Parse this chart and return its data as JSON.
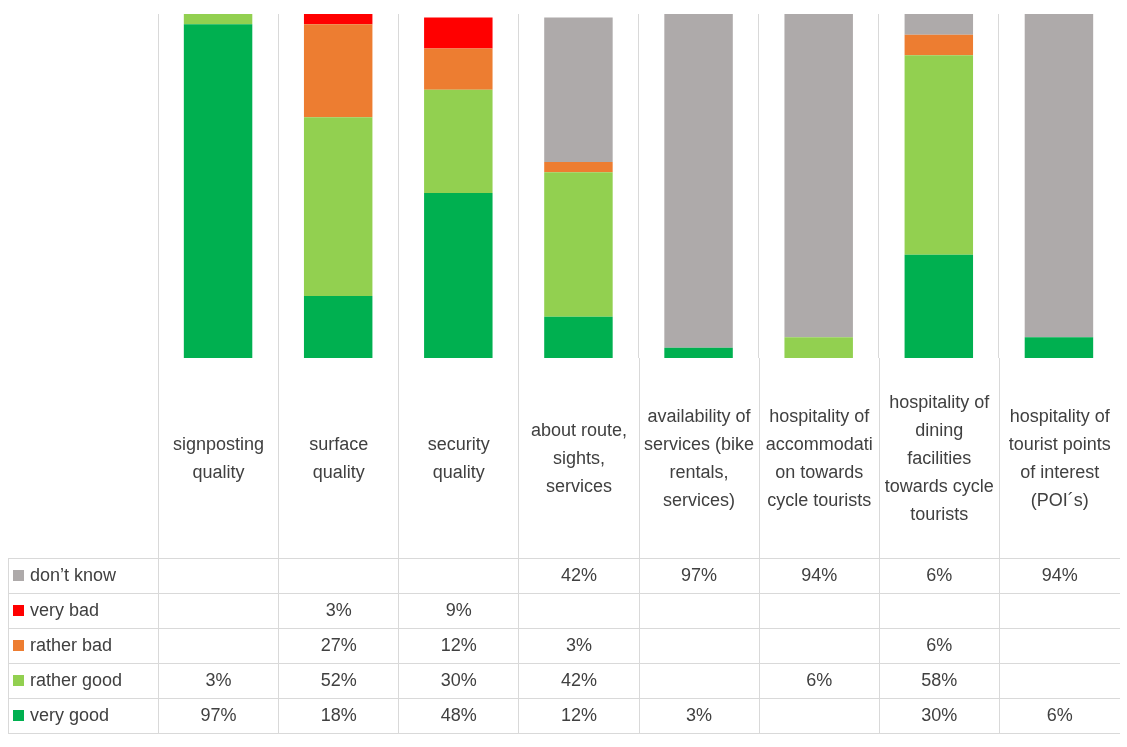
{
  "chart_data": {
    "type": "bar",
    "stacked": true,
    "categories": [
      "signposting quality",
      "surface quality",
      "security quality",
      "about route, sights, services",
      "availability of services (bike rentals, services)",
      "hospitality of accommodation towards cycle tourists",
      "hospitality of dining facilities towards cycle tourists",
      "hospitality of tourist points of interest (POI´s)"
    ],
    "ylim": [
      0,
      100
    ],
    "grid": "x",
    "legend": "bottom",
    "series": [
      {
        "name": "very good",
        "color": "#00b050",
        "values": [
          97,
          18,
          48,
          12,
          3,
          null,
          30,
          6
        ],
        "value_labels": [
          "97%",
          "18%",
          "48%",
          "12%",
          "3%",
          null,
          "30%",
          "6%"
        ]
      },
      {
        "name": "rather good",
        "color": "#92d050",
        "values": [
          3,
          52,
          30,
          42,
          null,
          6,
          58,
          null
        ],
        "value_labels": [
          "3%",
          "52%",
          "30%",
          "42%",
          null,
          "6%",
          "58%",
          null
        ]
      },
      {
        "name": "rather bad",
        "color": "#ed7d31",
        "values": [
          null,
          27,
          12,
          3,
          null,
          null,
          6,
          null
        ],
        "value_labels": [
          null,
          "27%",
          "12%",
          "3%",
          null,
          null,
          "6%",
          null
        ]
      },
      {
        "name": "very bad",
        "color": "#ff0000",
        "values": [
          null,
          3,
          9,
          null,
          null,
          null,
          null,
          null
        ],
        "value_labels": [
          null,
          "3%",
          "9%",
          null,
          null,
          null,
          null,
          null
        ]
      },
      {
        "name": "don’t know",
        "color": "#aeaaaa",
        "values": [
          null,
          null,
          null,
          42,
          97,
          94,
          6,
          94
        ],
        "value_labels": [
          null,
          null,
          null,
          "42%",
          "97%",
          "94%",
          "6%",
          "94%"
        ]
      }
    ]
  }
}
